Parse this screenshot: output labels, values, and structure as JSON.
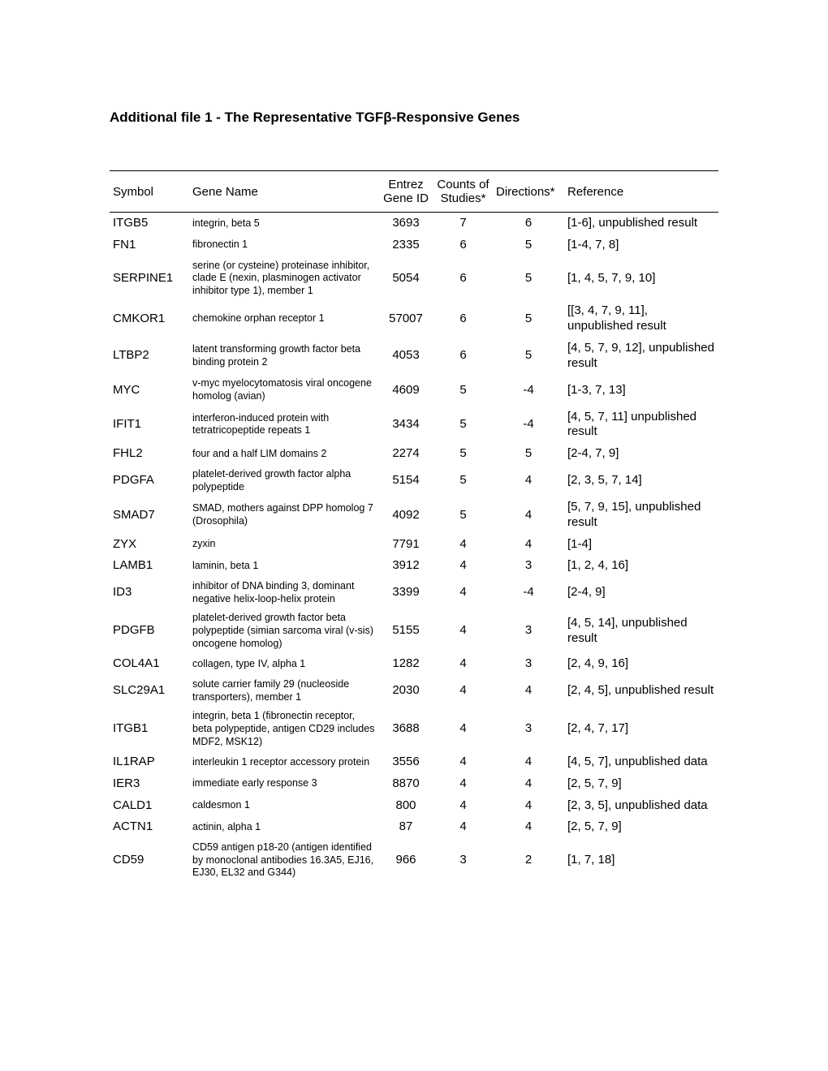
{
  "title": "Additional file 1  - The Representative TGFβ-Responsive Genes",
  "columns": {
    "symbol": "Symbol",
    "name": "Gene Name",
    "id": "Entrez Gene ID",
    "counts": "Counts of Studies*",
    "dir": "Directions*",
    "ref": "Reference"
  },
  "rows": [
    {
      "symbol": "ITGB5",
      "name": "integrin, beta 5",
      "id": "3693",
      "counts": "7",
      "dir": "6",
      "ref": "[1-6], unpublished result"
    },
    {
      "symbol": "FN1",
      "name": "fibronectin 1",
      "id": "2335",
      "counts": "6",
      "dir": "5",
      "ref": "[1-4, 7, 8]"
    },
    {
      "symbol": "SERPINE1",
      "name": "serine (or cysteine) proteinase inhibitor, clade E (nexin, plasminogen activator inhibitor type 1), member 1",
      "id": "5054",
      "counts": "6",
      "dir": "5",
      "ref": "[1, 4, 5, 7, 9, 10]"
    },
    {
      "symbol": "CMKOR1",
      "name": "chemokine orphan receptor 1",
      "id": "57007",
      "counts": "6",
      "dir": "5",
      "ref": "[[3, 4, 7, 9, 11], unpublished result"
    },
    {
      "symbol": "LTBP2",
      "name": "latent transforming growth factor beta binding protein 2",
      "id": "4053",
      "counts": "6",
      "dir": "5",
      "ref": "[4, 5, 7, 9, 12], unpublished result"
    },
    {
      "symbol": "MYC",
      "name": "v-myc myelocytomatosis viral oncogene homolog (avian)",
      "id": "4609",
      "counts": "5",
      "dir": "-4",
      "ref": "[1-3, 7, 13]"
    },
    {
      "symbol": "IFIT1",
      "name": "interferon-induced protein with tetratricopeptide repeats 1",
      "id": "3434",
      "counts": "5",
      "dir": "-4",
      "ref": "[4, 5, 7, 11] unpublished result"
    },
    {
      "symbol": "FHL2",
      "name": "four and a half LIM domains 2",
      "id": "2274",
      "counts": "5",
      "dir": "5",
      "ref": "[2-4, 7, 9]"
    },
    {
      "symbol": "PDGFA",
      "name": "platelet-derived growth factor alpha polypeptide",
      "id": "5154",
      "counts": "5",
      "dir": "4",
      "ref": "[2, 3, 5, 7, 14]"
    },
    {
      "symbol": "SMAD7",
      "name": "SMAD, mothers against DPP homolog 7 (Drosophila)",
      "id": "4092",
      "counts": "5",
      "dir": "4",
      "ref": "[5, 7, 9, 15], unpublished result"
    },
    {
      "symbol": "ZYX",
      "name": "zyxin",
      "id": "7791",
      "counts": "4",
      "dir": "4",
      "ref": "[1-4]"
    },
    {
      "symbol": "LAMB1",
      "name": "laminin, beta 1",
      "id": "3912",
      "counts": "4",
      "dir": "3",
      "ref": "[1, 2, 4, 16]"
    },
    {
      "symbol": "ID3",
      "name": "inhibitor of DNA binding 3, dominant negative helix-loop-helix protein",
      "id": "3399",
      "counts": "4",
      "dir": "-4",
      "ref": "[2-4, 9]"
    },
    {
      "symbol": "PDGFB",
      "name": "platelet-derived growth factor beta polypeptide (simian sarcoma viral (v-sis) oncogene homolog)",
      "id": "5155",
      "counts": "4",
      "dir": "3",
      "ref": "[4, 5, 14], unpublished result"
    },
    {
      "symbol": "COL4A1",
      "name": "collagen, type IV, alpha 1",
      "id": "1282",
      "counts": "4",
      "dir": "3",
      "ref": "[2, 4, 9, 16]"
    },
    {
      "symbol": "SLC29A1",
      "name": "solute carrier family 29 (nucleoside transporters), member 1",
      "id": "2030",
      "counts": "4",
      "dir": "4",
      "ref": "[2, 4, 5], unpublished result"
    },
    {
      "symbol": "ITGB1",
      "name": "integrin, beta 1 (fibronectin receptor, beta polypeptide, antigen CD29 includes MDF2, MSK12)",
      "id": "3688",
      "counts": "4",
      "dir": "3",
      "ref": "[2, 4, 7, 17]"
    },
    {
      "symbol": "IL1RAP",
      "name": "interleukin 1 receptor accessory protein",
      "id": "3556",
      "counts": "4",
      "dir": "4",
      "ref": "[4, 5, 7], unpublished data"
    },
    {
      "symbol": "IER3",
      "name": "immediate early response 3",
      "id": "8870",
      "counts": "4",
      "dir": "4",
      "ref": "[2, 5, 7, 9]"
    },
    {
      "symbol": "CALD1",
      "name": "caldesmon 1",
      "id": "800",
      "counts": "4",
      "dir": "4",
      "ref": "[2, 3, 5], unpublished data"
    },
    {
      "symbol": "ACTN1",
      "name": "actinin, alpha 1",
      "id": "87",
      "counts": "4",
      "dir": "4",
      "ref": "[2, 5, 7, 9]"
    },
    {
      "symbol": "CD59",
      "name": "CD59 antigen p18-20 (antigen identified by monoclonal antibodies 16.3A5, EJ16, EJ30, EL32 and G344)",
      "id": "966",
      "counts": "3",
      "dir": "2",
      "ref": "[1, 7, 18]"
    }
  ]
}
